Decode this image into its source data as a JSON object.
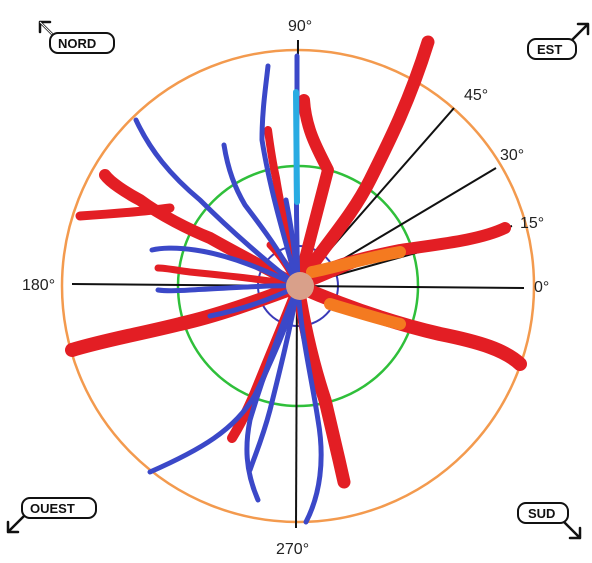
{
  "angle_labels": {
    "deg0": "0°",
    "deg15": "15°",
    "deg30": "30°",
    "deg45": "45°",
    "deg90": "90°",
    "deg180": "180°",
    "deg270": "270°"
  },
  "compass": {
    "nord": "NORD",
    "est": "EST",
    "ouest": "OUEST",
    "sud": "SUD"
  },
  "colors": {
    "outer_circle": "#f39a4e",
    "middle_circle": "#2fbf3a",
    "inner_circle": "#3a3ab8",
    "red_streak": "#e31e24",
    "blue_line": "#3b48c8",
    "orange_segment": "#f47a20",
    "cyan_segment": "#29abe2"
  }
}
